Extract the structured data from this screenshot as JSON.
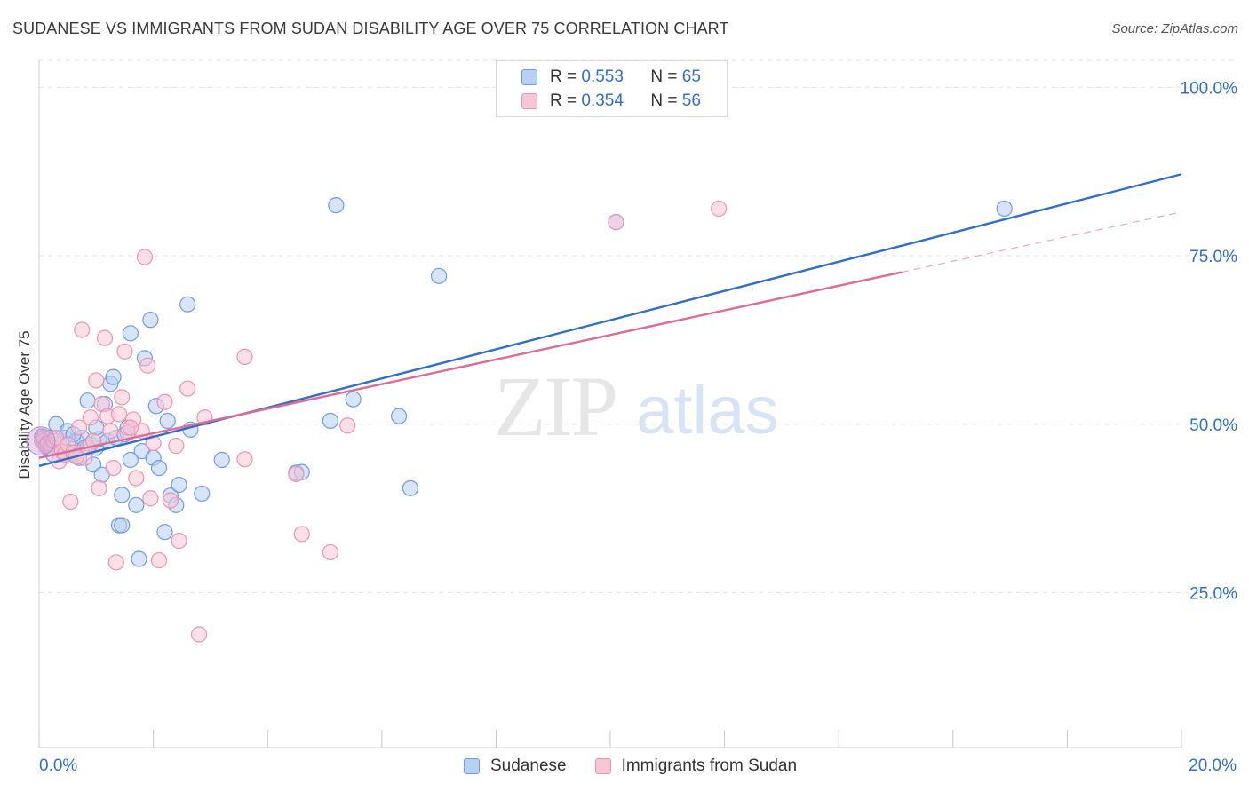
{
  "title": "SUDANESE VS IMMIGRANTS FROM SUDAN DISABILITY AGE OVER 75 CORRELATION CHART",
  "source": "Source: ZipAtlas.com",
  "watermark": {
    "zip": "ZIP",
    "atlas": "atlas"
  },
  "legend_top": [
    {
      "r_label": "R = ",
      "r_value": "0.553",
      "n_label": "N = ",
      "n_value": "65"
    },
    {
      "r_label": "R = ",
      "r_value": "0.354",
      "n_label": "N = ",
      "n_value": "56"
    }
  ],
  "legend_bottom": [
    "Sudanese",
    "Immigrants from Sudan"
  ],
  "colors": {
    "blue_line": "#2f6fc8",
    "blue_fill": "#b8d0f4",
    "blue_stroke": "#6d9de0",
    "pink_line": "#e06a96",
    "pink_fill": "#f9c6d6",
    "pink_stroke": "#ec93b1",
    "tick_text": "#2f6fc8",
    "grid": "#e2e2e2"
  },
  "chart_data": {
    "type": "scatter",
    "title": "SUDANESE VS IMMIGRANTS FROM SUDAN DISABILITY AGE OVER 75 CORRELATION CHART",
    "xlabel": "",
    "ylabel": "Disability Age Over 75",
    "xlim": [
      0,
      20
    ],
    "ylim": [
      2,
      104
    ],
    "x_tick_labels": [
      "0.0%",
      "20.0%"
    ],
    "y_ticks": [
      25,
      50,
      75,
      100
    ],
    "y_tick_labels": [
      "25.0%",
      "50.0%",
      "75.0%",
      "100.0%"
    ],
    "grid": true,
    "legend_position": "top-center",
    "series": [
      {
        "name": "Sudanese",
        "r": 0.553,
        "n": 65,
        "trend": {
          "x": [
            0,
            20
          ],
          "y": [
            43.8,
            87.1
          ],
          "dashed_from": null
        },
        "points": [
          [
            0.05,
            48.2
          ],
          [
            0.08,
            47.5
          ],
          [
            0.12,
            47.0
          ],
          [
            0.15,
            46.5
          ],
          [
            0.2,
            48.0
          ],
          [
            0.25,
            45.5
          ],
          [
            0.3,
            50.0
          ],
          [
            0.35,
            47.0
          ],
          [
            0.4,
            46.0
          ],
          [
            0.45,
            48.0
          ],
          [
            0.5,
            49.0
          ],
          [
            0.55,
            45.8
          ],
          [
            0.6,
            45.5
          ],
          [
            0.65,
            47.5
          ],
          [
            0.7,
            45.0
          ],
          [
            0.75,
            48.0
          ],
          [
            0.8,
            46.5
          ],
          [
            0.85,
            53.5
          ],
          [
            0.9,
            47.0
          ],
          [
            0.95,
            44.0
          ],
          [
            1.0,
            46.5
          ],
          [
            1.05,
            47.8
          ],
          [
            1.1,
            42.5
          ],
          [
            1.15,
            53.0
          ],
          [
            1.2,
            47.5
          ],
          [
            1.25,
            56.0
          ],
          [
            1.3,
            57.0
          ],
          [
            1.35,
            48.0
          ],
          [
            1.4,
            35.0
          ],
          [
            1.45,
            39.5
          ],
          [
            1.5,
            48.5
          ],
          [
            1.55,
            49.5
          ],
          [
            1.6,
            44.7
          ],
          [
            1.7,
            38.0
          ],
          [
            1.75,
            30.0
          ],
          [
            1.8,
            46.0
          ],
          [
            1.95,
            65.5
          ],
          [
            2.0,
            45.0
          ],
          [
            2.05,
            52.7
          ],
          [
            2.1,
            43.5
          ],
          [
            2.2,
            34.0
          ],
          [
            2.25,
            50.5
          ],
          [
            2.3,
            39.4
          ],
          [
            2.4,
            38.0
          ],
          [
            2.45,
            41.0
          ],
          [
            2.6,
            67.8
          ],
          [
            2.65,
            49.2
          ],
          [
            2.85,
            39.7
          ],
          [
            3.2,
            44.7
          ],
          [
            4.5,
            42.8
          ],
          [
            4.6,
            42.9
          ],
          [
            5.1,
            50.5
          ],
          [
            5.2,
            82.5
          ],
          [
            5.5,
            53.7
          ],
          [
            6.3,
            51.2
          ],
          [
            6.5,
            40.5
          ],
          [
            7.0,
            72.0
          ],
          [
            10.1,
            80.0
          ],
          [
            16.9,
            82.0
          ],
          [
            0.6,
            48.5
          ],
          [
            1.0,
            49.5
          ],
          [
            1.6,
            63.5
          ],
          [
            1.85,
            59.8
          ],
          [
            1.45,
            35.0
          ],
          [
            0.18,
            47.0
          ]
        ]
      },
      {
        "name": "Immigrants from Sudan",
        "r": 0.354,
        "n": 56,
        "trend": {
          "x": [
            0,
            20
          ],
          "y": [
            45.0,
            81.5
          ],
          "dashed_from": 15.1
        },
        "points": [
          [
            0.05,
            47.5
          ],
          [
            0.08,
            48.0
          ],
          [
            0.12,
            46.8
          ],
          [
            0.15,
            47.2
          ],
          [
            0.2,
            46.5
          ],
          [
            0.25,
            47.5
          ],
          [
            0.3,
            48.0
          ],
          [
            0.35,
            44.5
          ],
          [
            0.4,
            46.0
          ],
          [
            0.45,
            45.5
          ],
          [
            0.5,
            47.0
          ],
          [
            0.55,
            38.5
          ],
          [
            0.6,
            45.8
          ],
          [
            0.7,
            49.5
          ],
          [
            0.75,
            64.0
          ],
          [
            0.8,
            45.0
          ],
          [
            0.85,
            46.5
          ],
          [
            0.9,
            51.0
          ],
          [
            1.0,
            56.5
          ],
          [
            1.05,
            40.5
          ],
          [
            1.1,
            53.0
          ],
          [
            1.15,
            62.8
          ],
          [
            1.2,
            51.2
          ],
          [
            1.25,
            49.0
          ],
          [
            1.3,
            43.5
          ],
          [
            1.35,
            29.5
          ],
          [
            1.45,
            54.0
          ],
          [
            1.5,
            60.8
          ],
          [
            1.55,
            48.7
          ],
          [
            1.65,
            50.7
          ],
          [
            1.7,
            42.0
          ],
          [
            1.8,
            49.0
          ],
          [
            1.85,
            74.8
          ],
          [
            1.9,
            58.7
          ],
          [
            1.95,
            39.0
          ],
          [
            2.1,
            29.8
          ],
          [
            2.2,
            53.3
          ],
          [
            2.3,
            38.7
          ],
          [
            2.4,
            46.8
          ],
          [
            2.45,
            32.7
          ],
          [
            2.6,
            55.3
          ],
          [
            2.8,
            18.8
          ],
          [
            2.9,
            51.0
          ],
          [
            3.6,
            60.0
          ],
          [
            3.6,
            44.8
          ],
          [
            4.5,
            42.6
          ],
          [
            4.6,
            33.7
          ],
          [
            5.1,
            31.0
          ],
          [
            5.4,
            49.8
          ],
          [
            10.1,
            80.0
          ],
          [
            11.9,
            82.0
          ],
          [
            0.95,
            47.5
          ],
          [
            1.6,
            49.5
          ],
          [
            2.0,
            47.2
          ],
          [
            0.65,
            45.2
          ],
          [
            1.4,
            51.5
          ]
        ]
      }
    ]
  }
}
